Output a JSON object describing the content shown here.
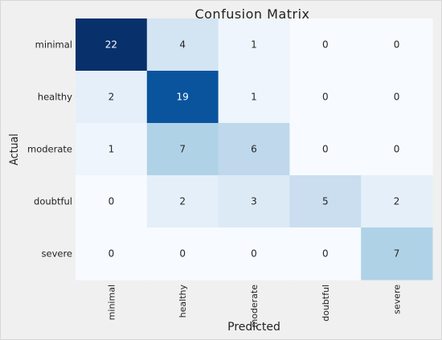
{
  "chart_data": {
    "type": "heatmap",
    "title": "Confusion Matrix",
    "xlabel": "Predicted",
    "ylabel": "Actual",
    "x_categories": [
      "minimal",
      "healthy",
      "moderate",
      "doubtful",
      "severe"
    ],
    "y_categories": [
      "minimal",
      "healthy",
      "moderate",
      "doubtful",
      "severe"
    ],
    "values": [
      [
        22,
        4,
        1,
        0,
        0
      ],
      [
        2,
        19,
        1,
        0,
        0
      ],
      [
        1,
        7,
        6,
        0,
        0
      ],
      [
        0,
        2,
        3,
        5,
        2
      ],
      [
        0,
        0,
        0,
        0,
        7
      ]
    ],
    "colormap": "Blues",
    "vmin": 0,
    "vmax": 22,
    "grid": false
  }
}
